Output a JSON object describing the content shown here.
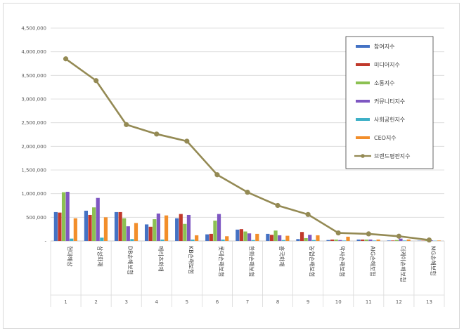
{
  "chart_data": {
    "type": "bar",
    "categories": [
      "현대해상",
      "삼성화재",
      "DB손해보험",
      "메리츠화재",
      "KB손해보험",
      "롯데손해보험",
      "한화손해보험",
      "흥국화재",
      "농협손해보험",
      "악사손해보험",
      "AIG손해보험",
      "더케이손해보험",
      "MG손해보험"
    ],
    "category_numbers": [
      "1",
      "2",
      "3",
      "4",
      "5",
      "6",
      "7",
      "8",
      "9",
      "10",
      "11",
      "12",
      "13"
    ],
    "ylim": [
      0,
      4500000
    ],
    "yticks": [
      "-",
      "500,000",
      "1,000,000",
      "1,500,000",
      "2,000,000",
      "2,500,000",
      "3,000,000",
      "3,500,000",
      "4,000,000",
      "4,500,000"
    ],
    "grid": true,
    "legend_position": "top-right",
    "series": [
      {
        "name": "참여지수",
        "type": "bar",
        "color": "#4472c4",
        "values": [
          610000,
          640000,
          610000,
          350000,
          480000,
          140000,
          240000,
          150000,
          40000,
          20000,
          30000,
          10000,
          5000
        ]
      },
      {
        "name": "미디어지수",
        "type": "bar",
        "color": "#c0392b",
        "values": [
          600000,
          550000,
          610000,
          300000,
          570000,
          150000,
          250000,
          130000,
          190000,
          30000,
          30000,
          10000,
          5000
        ]
      },
      {
        "name": "소통지수",
        "type": "bar",
        "color": "#8cc152",
        "values": [
          1030000,
          710000,
          480000,
          460000,
          360000,
          430000,
          200000,
          220000,
          60000,
          30000,
          30000,
          20000,
          10000
        ]
      },
      {
        "name": "커뮤니티지수",
        "type": "bar",
        "color": "#7e57c2",
        "values": [
          1040000,
          910000,
          310000,
          580000,
          550000,
          570000,
          160000,
          120000,
          130000,
          20000,
          30000,
          50000,
          15000
        ]
      },
      {
        "name": "사회공헌지수",
        "type": "bar",
        "color": "#3eb0c7",
        "values": [
          50000,
          70000,
          40000,
          30000,
          30000,
          30000,
          20000,
          20000,
          20000,
          10000,
          10000,
          10000,
          5000
        ]
      },
      {
        "name": "CEO지수",
        "type": "bar",
        "color": "#f28e2b",
        "values": [
          480000,
          500000,
          380000,
          540000,
          120000,
          100000,
          150000,
          110000,
          120000,
          90000,
          30000,
          30000,
          10000
        ]
      },
      {
        "name": "브랜드평판지수",
        "type": "line",
        "color": "#948a54",
        "values": [
          3850000,
          3390000,
          2460000,
          2260000,
          2110000,
          1400000,
          1030000,
          750000,
          560000,
          170000,
          150000,
          100000,
          20000
        ]
      }
    ]
  }
}
